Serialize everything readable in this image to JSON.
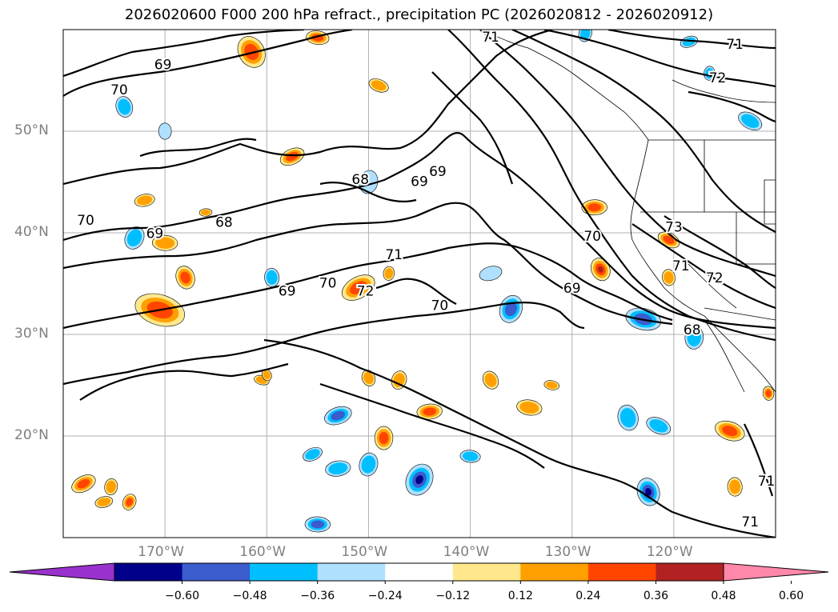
{
  "title": "2026020600 F000 200 hPa refract., precipitation PC (2026020812 - 2026020912)",
  "map": {
    "lon_range": [
      -180,
      -110
    ],
    "lat_range": [
      10,
      60
    ],
    "lat_ticks": [
      {
        "value": 50,
        "label": "50°N"
      },
      {
        "value": 40,
        "label": "40°N"
      },
      {
        "value": 30,
        "label": "30°N"
      },
      {
        "value": 20,
        "label": "20°N"
      }
    ],
    "lon_ticks": [
      {
        "value": -170,
        "label": "170°W"
      },
      {
        "value": -160,
        "label": "160°W"
      },
      {
        "value": -150,
        "label": "150°W"
      },
      {
        "value": -140,
        "label": "140°W"
      },
      {
        "value": -130,
        "label": "130°W"
      },
      {
        "value": -120,
        "label": "120°W"
      }
    ],
    "contour_labels": [
      {
        "text": "70",
        "lon": -174.5,
        "lat": 54.0
      },
      {
        "text": "69",
        "lon": -170.2,
        "lat": 56.5
      },
      {
        "text": "71",
        "lon": -138.0,
        "lat": 59.2
      },
      {
        "text": "71",
        "lon": -114.0,
        "lat": 58.5
      },
      {
        "text": "72",
        "lon": -115.7,
        "lat": 55.2
      },
      {
        "text": "68",
        "lon": -150.8,
        "lat": 45.2
      },
      {
        "text": "69",
        "lon": -145.0,
        "lat": 45.0
      },
      {
        "text": "69",
        "lon": -143.2,
        "lat": 46.0
      },
      {
        "text": "70",
        "lon": -177.8,
        "lat": 41.2
      },
      {
        "text": "69",
        "lon": -171.0,
        "lat": 39.9
      },
      {
        "text": "68",
        "lon": -164.2,
        "lat": 41.0
      },
      {
        "text": "70",
        "lon": -128.0,
        "lat": 39.6
      },
      {
        "text": "73",
        "lon": -120.0,
        "lat": 40.5
      },
      {
        "text": "71",
        "lon": -147.5,
        "lat": 37.8
      },
      {
        "text": "71",
        "lon": -119.3,
        "lat": 36.7
      },
      {
        "text": "72",
        "lon": -116.0,
        "lat": 35.5
      },
      {
        "text": "69",
        "lon": -158.0,
        "lat": 34.2
      },
      {
        "text": "70",
        "lon": -154.0,
        "lat": 35.0
      },
      {
        "text": "72",
        "lon": -150.3,
        "lat": 34.2
      },
      {
        "text": "70",
        "lon": -143.0,
        "lat": 32.8
      },
      {
        "text": "69",
        "lon": -130.0,
        "lat": 34.5
      },
      {
        "text": "68",
        "lon": -118.2,
        "lat": 30.4
      },
      {
        "text": "71",
        "lon": -110.9,
        "lat": 15.5
      },
      {
        "text": "71",
        "lon": -112.5,
        "lat": 11.5
      }
    ]
  },
  "colorbar": {
    "colors": [
      "#9932cc",
      "#00008b",
      "#3a5ccc",
      "#00bfff",
      "#b0e0ff",
      "#ffffff",
      "#ffe88c",
      "#ffa000",
      "#ff4500",
      "#b22222",
      "#ff88aa"
    ],
    "tick_labels": [
      "−0.60",
      "−0.48",
      "−0.36",
      "−0.24",
      "−0.12",
      "0.12",
      "0.24",
      "0.36",
      "0.48",
      "0.60"
    ]
  },
  "precip_cells": [
    {
      "lon": -161.5,
      "lat": 57.8,
      "r": 1.4,
      "sign": 1,
      "intensity": 3
    },
    {
      "lon": -155.0,
      "lat": 59.2,
      "r": 0.9,
      "sign": 1,
      "intensity": 3
    },
    {
      "lon": -174.0,
      "lat": 52.4,
      "r": 0.9,
      "sign": -1,
      "intensity": 2
    },
    {
      "lon": -149.0,
      "lat": 54.5,
      "r": 0.8,
      "sign": 1,
      "intensity": 2
    },
    {
      "lon": -170.0,
      "lat": 50.0,
      "r": 0.7,
      "sign": -1,
      "intensity": 1
    },
    {
      "lon": -157.5,
      "lat": 47.5,
      "r": 1.0,
      "sign": 1,
      "intensity": 3
    },
    {
      "lon": -150.0,
      "lat": 45.0,
      "r": 1.0,
      "sign": -1,
      "intensity": 1
    },
    {
      "lon": -172.0,
      "lat": 43.2,
      "r": 0.8,
      "sign": 1,
      "intensity": 2
    },
    {
      "lon": -173.0,
      "lat": 39.5,
      "r": 1.0,
      "sign": -1,
      "intensity": 2
    },
    {
      "lon": -170.0,
      "lat": 39.0,
      "r": 1.0,
      "sign": 1,
      "intensity": 2
    },
    {
      "lon": -168.0,
      "lat": 35.6,
      "r": 1.0,
      "sign": 1,
      "intensity": 3
    },
    {
      "lon": -170.5,
      "lat": 32.4,
      "r": 2.0,
      "sign": 1,
      "intensity": 3
    },
    {
      "lon": -159.5,
      "lat": 35.6,
      "r": 0.8,
      "sign": -1,
      "intensity": 2
    },
    {
      "lon": -151.0,
      "lat": 34.6,
      "r": 1.4,
      "sign": 1,
      "intensity": 3
    },
    {
      "lon": -148.0,
      "lat": 36.0,
      "r": 0.6,
      "sign": 1,
      "intensity": 2
    },
    {
      "lon": -138.0,
      "lat": 36.0,
      "r": 0.9,
      "sign": -1,
      "intensity": 1
    },
    {
      "lon": -136.0,
      "lat": 32.5,
      "r": 1.2,
      "sign": -1,
      "intensity": 3
    },
    {
      "lon": -127.8,
      "lat": 42.5,
      "r": 1.0,
      "sign": 1,
      "intensity": 3
    },
    {
      "lon": -127.2,
      "lat": 36.4,
      "r": 1.0,
      "sign": 1,
      "intensity": 4
    },
    {
      "lon": -123.0,
      "lat": 31.5,
      "r": 1.4,
      "sign": -1,
      "intensity": 3
    },
    {
      "lon": -120.5,
      "lat": 35.6,
      "r": 0.7,
      "sign": 1,
      "intensity": 2
    },
    {
      "lon": -120.5,
      "lat": 39.3,
      "r": 0.9,
      "sign": 1,
      "intensity": 3
    },
    {
      "lon": -118.0,
      "lat": 29.7,
      "r": 1.0,
      "sign": -1,
      "intensity": 2
    },
    {
      "lon": -153.0,
      "lat": 22.0,
      "r": 1.1,
      "sign": -1,
      "intensity": 3
    },
    {
      "lon": -147.0,
      "lat": 25.5,
      "r": 0.8,
      "sign": 1,
      "intensity": 2
    },
    {
      "lon": -144.0,
      "lat": 22.4,
      "r": 1.0,
      "sign": 1,
      "intensity": 3
    },
    {
      "lon": -138.0,
      "lat": 25.5,
      "r": 0.8,
      "sign": 1,
      "intensity": 2
    },
    {
      "lon": -134.2,
      "lat": 22.8,
      "r": 1.0,
      "sign": 1,
      "intensity": 2
    },
    {
      "lon": -124.5,
      "lat": 21.8,
      "r": 1.1,
      "sign": -1,
      "intensity": 2
    },
    {
      "lon": -121.5,
      "lat": 21.0,
      "r": 1.0,
      "sign": -1,
      "intensity": 2
    },
    {
      "lon": -148.5,
      "lat": 19.8,
      "r": 1.0,
      "sign": 1,
      "intensity": 3
    },
    {
      "lon": -155.5,
      "lat": 18.2,
      "r": 0.8,
      "sign": -1,
      "intensity": 2
    },
    {
      "lon": -150.0,
      "lat": 17.2,
      "r": 1.0,
      "sign": -1,
      "intensity": 2
    },
    {
      "lon": -153.0,
      "lat": 16.8,
      "r": 1.0,
      "sign": -1,
      "intensity": 2
    },
    {
      "lon": -145.0,
      "lat": 15.7,
      "r": 1.4,
      "sign": -1,
      "intensity": 4
    },
    {
      "lon": -140.0,
      "lat": 18.0,
      "r": 0.8,
      "sign": -1,
      "intensity": 2
    },
    {
      "lon": -122.5,
      "lat": 14.5,
      "r": 1.2,
      "sign": -1,
      "intensity": 4
    },
    {
      "lon": -114.5,
      "lat": 20.5,
      "r": 1.2,
      "sign": 1,
      "intensity": 3
    },
    {
      "lon": -114.0,
      "lat": 15.0,
      "r": 0.8,
      "sign": 1,
      "intensity": 2
    },
    {
      "lon": -178.0,
      "lat": 15.3,
      "r": 1.0,
      "sign": 1,
      "intensity": 3
    },
    {
      "lon": -175.3,
      "lat": 15.0,
      "r": 0.7,
      "sign": 1,
      "intensity": 2
    },
    {
      "lon": -176.0,
      "lat": 13.5,
      "r": 0.7,
      "sign": 1,
      "intensity": 2
    },
    {
      "lon": -173.5,
      "lat": 13.5,
      "r": 0.7,
      "sign": 1,
      "intensity": 3
    },
    {
      "lon": -155.0,
      "lat": 11.3,
      "r": 1.0,
      "sign": -1,
      "intensity": 3
    },
    {
      "lon": -150.0,
      "lat": 25.7,
      "r": 0.7,
      "sign": 1,
      "intensity": 2
    },
    {
      "lon": -160.5,
      "lat": 25.5,
      "r": 0.6,
      "sign": 1,
      "intensity": 2
    },
    {
      "lon": -110.7,
      "lat": 24.2,
      "r": 0.6,
      "sign": 1,
      "intensity": 3
    },
    {
      "lon": -112.5,
      "lat": 51.0,
      "r": 1.0,
      "sign": -1,
      "intensity": 2
    },
    {
      "lon": -116.5,
      "lat": 55.7,
      "r": 0.6,
      "sign": -1,
      "intensity": 2
    },
    {
      "lon": -118.5,
      "lat": 58.8,
      "r": 0.7,
      "sign": -1,
      "intensity": 2
    },
    {
      "lon": -128.7,
      "lat": 59.6,
      "r": 0.7,
      "sign": -1,
      "intensity": 2
    },
    {
      "lon": -166.0,
      "lat": 42.0,
      "r": 0.5,
      "sign": 1,
      "intensity": 2
    },
    {
      "lon": -160.0,
      "lat": 26.0,
      "r": 0.5,
      "sign": 1,
      "intensity": 2
    },
    {
      "lon": -132.0,
      "lat": 25.0,
      "r": 0.6,
      "sign": 1,
      "intensity": 2
    }
  ]
}
